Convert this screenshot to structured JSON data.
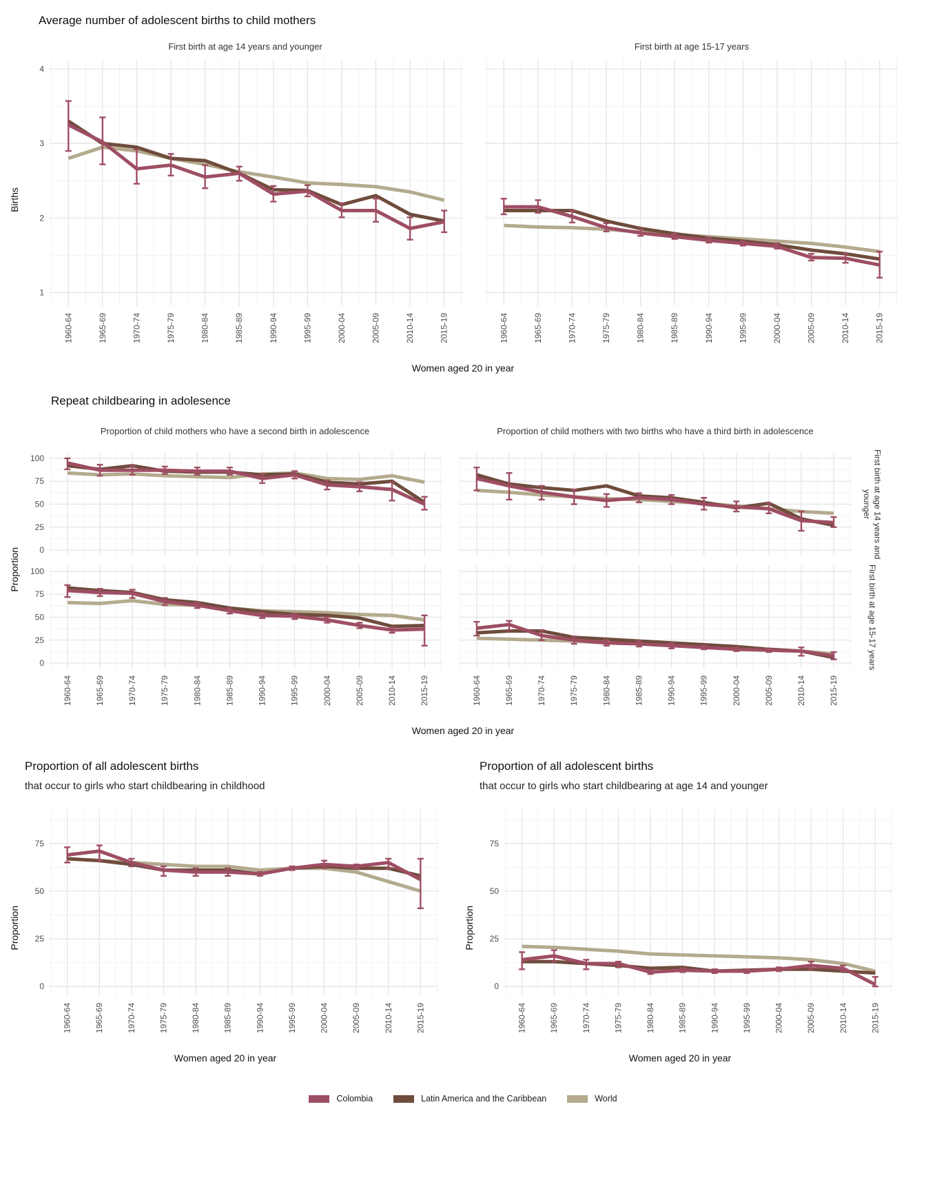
{
  "colors": {
    "colombia": "#9e4e63",
    "lac": "#6f4c3c",
    "world": "#b4aa8e",
    "grid_major": "#e5e5e5",
    "grid_minor": "#f2f2f2"
  },
  "x_categories": [
    "1960-64",
    "1965-69",
    "1970-74",
    "1975-79",
    "1980-84",
    "1985-89",
    "1990-94",
    "1995-99",
    "2000-04",
    "2005-09",
    "2010-14",
    "2015-19"
  ],
  "x_axis_title": "Women aged 20 in year",
  "legend": [
    {
      "label": "Colombia",
      "color": "#9e4e63"
    },
    {
      "label": "Latin America and the Caribbean",
      "color": "#6f4c3c"
    },
    {
      "label": "World",
      "color": "#b4aa8e"
    }
  ],
  "section_births": {
    "title": "Average number of adolescent births to child mothers",
    "y_label": "Births",
    "panel_titles": [
      "First birth at age 14 years and younger",
      "First birth at age 15-17 years"
    ]
  },
  "section_repeat": {
    "title": "Repeat childbearing in adolesence",
    "y_label": "Proportion",
    "col_titles": [
      "Proportion of child mothers who have a second birth in adolescence",
      "Proportion of child mothers with two births who have a third birth in adolescence"
    ],
    "row_strips": [
      "First birth at age 14 years and younger",
      "First birth at age 15-17 years"
    ]
  },
  "section_proportion": {
    "charts": [
      {
        "title": "Proportion of all adolescent births",
        "subtitle": "that occur to girls who start childbearing in childhood",
        "y_label": "Proportion"
      },
      {
        "title": "Proportion of all adolescent births",
        "subtitle": "that occur to girls who start childbearing at age 14 and younger",
        "y_label": "Proportion"
      }
    ]
  },
  "chart_data": [
    {
      "key": "births_first_birth_14_and_younger",
      "type": "line",
      "title": "First birth at age 14 years and younger",
      "ylabel": "Births",
      "ylim": [
        0.82,
        4.12
      ],
      "yticks_major": [
        1,
        2,
        3,
        4
      ],
      "yticks_minor": [
        1.5,
        2.5,
        3.5
      ],
      "series": [
        {
          "name": "World",
          "color": "#b4aa8e",
          "values": [
            2.8,
            2.95,
            2.9,
            2.8,
            2.72,
            2.62,
            2.55,
            2.47,
            2.45,
            2.42,
            2.35,
            2.24
          ]
        },
        {
          "name": "Latin America and the Caribbean",
          "color": "#6f4c3c",
          "values": [
            3.3,
            3.0,
            2.95,
            2.8,
            2.77,
            2.6,
            2.38,
            2.37,
            2.18,
            2.3,
            2.05,
            1.96
          ]
        },
        {
          "name": "Colombia",
          "color": "#9e4e63",
          "values": [
            3.25,
            3.02,
            2.66,
            2.71,
            2.55,
            2.6,
            2.32,
            2.36,
            2.1,
            2.1,
            1.86,
            1.95
          ],
          "error_low": [
            2.9,
            2.72,
            2.46,
            2.57,
            2.4,
            2.5,
            2.22,
            2.29,
            2.01,
            1.95,
            1.71,
            1.81
          ],
          "error_high": [
            3.57,
            3.35,
            2.92,
            2.86,
            2.71,
            2.69,
            2.43,
            2.44,
            2.2,
            2.26,
            2.01,
            2.1
          ]
        }
      ]
    },
    {
      "key": "births_first_birth_15_17",
      "type": "line",
      "title": "First birth at age 15-17 years",
      "ylabel": "Births",
      "ylim": [
        0.82,
        4.12
      ],
      "yticks_major": [
        1,
        2,
        3,
        4
      ],
      "yticks_minor": [
        1.5,
        2.5,
        3.5
      ],
      "series": [
        {
          "name": "World",
          "color": "#b4aa8e",
          "values": [
            1.9,
            1.88,
            1.87,
            1.85,
            1.81,
            1.78,
            1.75,
            1.72,
            1.69,
            1.66,
            1.61,
            1.55
          ]
        },
        {
          "name": "Latin America and the Caribbean",
          "color": "#6f4c3c",
          "values": [
            2.1,
            2.1,
            2.1,
            1.96,
            1.86,
            1.79,
            1.73,
            1.69,
            1.64,
            1.57,
            1.52,
            1.45
          ]
        },
        {
          "name": "Colombia",
          "color": "#9e4e63",
          "values": [
            2.15,
            2.15,
            2.02,
            1.87,
            1.8,
            1.75,
            1.7,
            1.66,
            1.62,
            1.47,
            1.46,
            1.37
          ],
          "error_low": [
            2.05,
            2.07,
            1.94,
            1.82,
            1.76,
            1.72,
            1.67,
            1.63,
            1.59,
            1.43,
            1.4,
            1.2
          ],
          "error_high": [
            2.26,
            2.24,
            2.1,
            1.93,
            1.85,
            1.79,
            1.74,
            1.69,
            1.66,
            1.52,
            1.52,
            1.55
          ]
        }
      ]
    },
    {
      "key": "second_birth_given_first_14_and_younger",
      "type": "line",
      "title": "Proportion of child mothers who have a second birth in adolescence | First birth at age 14 years and younger",
      "ylabel": "Proportion",
      "ylim": [
        -6,
        106
      ],
      "yticks_major": [
        0,
        25,
        50,
        75,
        100
      ],
      "yticks_minor": [
        12.5,
        37.5,
        62.5,
        87.5
      ],
      "series": [
        {
          "name": "World",
          "color": "#b4aa8e",
          "values": [
            84,
            82,
            83,
            81,
            80,
            79,
            83,
            84,
            78,
            77,
            81,
            74
          ]
        },
        {
          "name": "Latin America and the Caribbean",
          "color": "#6f4c3c",
          "values": [
            92,
            88,
            92,
            86,
            85,
            85,
            82,
            83,
            74,
            72,
            75,
            52
          ]
        },
        {
          "name": "Colombia",
          "color": "#9e4e63",
          "values": [
            95,
            87,
            87,
            87,
            86,
            86,
            78,
            82,
            71,
            69,
            66,
            50
          ],
          "error_low": [
            88,
            81,
            82,
            83,
            82,
            82,
            73,
            78,
            66,
            64,
            54,
            44
          ],
          "error_high": [
            100,
            93,
            92,
            91,
            90,
            90,
            83,
            86,
            76,
            74,
            74,
            58
          ]
        }
      ]
    },
    {
      "key": "third_birth_given_first_14_and_younger",
      "type": "line",
      "title": "Proportion of child mothers with two births who have a third birth in adolescence | First birth at age 14 years and younger",
      "ylabel": "Proportion",
      "ylim": [
        -6,
        106
      ],
      "yticks_major": [
        0,
        25,
        50,
        75,
        100
      ],
      "yticks_minor": [
        12.5,
        37.5,
        62.5,
        87.5
      ],
      "series": [
        {
          "name": "World",
          "color": "#b4aa8e",
          "values": [
            65,
            63,
            60,
            58,
            56,
            55,
            53,
            51,
            48,
            45,
            42,
            40
          ]
        },
        {
          "name": "Latin America and the Caribbean",
          "color": "#6f4c3c",
          "values": [
            82,
            72,
            68,
            65,
            70,
            59,
            57,
            52,
            46,
            51,
            34,
            27
          ]
        },
        {
          "name": "Colombia",
          "color": "#9e4e63",
          "values": [
            78,
            70,
            63,
            58,
            54,
            57,
            55,
            50,
            47,
            45,
            32,
            30
          ],
          "error_low": [
            65,
            55,
            55,
            50,
            47,
            52,
            50,
            44,
            42,
            40,
            21,
            25
          ],
          "error_high": [
            90,
            84,
            70,
            66,
            61,
            62,
            60,
            57,
            53,
            51,
            42,
            36
          ]
        }
      ]
    },
    {
      "key": "second_birth_given_first_15_17",
      "type": "line",
      "title": "Proportion of child mothers who have a second birth in adolescence | First birth at age 15-17 years",
      "ylabel": "Proportion",
      "ylim": [
        -6,
        106
      ],
      "yticks_major": [
        0,
        25,
        50,
        75,
        100
      ],
      "yticks_minor": [
        12.5,
        37.5,
        62.5,
        87.5
      ],
      "series": [
        {
          "name": "World",
          "color": "#b4aa8e",
          "values": [
            66,
            65,
            68,
            64,
            63,
            60,
            57,
            56,
            55,
            53,
            52,
            47
          ]
        },
        {
          "name": "Latin America and the Caribbean",
          "color": "#6f4c3c",
          "values": [
            82,
            79,
            77,
            69,
            66,
            60,
            56,
            53,
            52,
            49,
            40,
            41
          ]
        },
        {
          "name": "Colombia",
          "color": "#9e4e63",
          "values": [
            79,
            77,
            76,
            67,
            63,
            57,
            52,
            51,
            47,
            41,
            36,
            37
          ],
          "error_low": [
            72,
            73,
            71,
            63,
            60,
            54,
            49,
            48,
            44,
            38,
            33,
            19
          ],
          "error_high": [
            85,
            81,
            80,
            71,
            66,
            60,
            55,
            54,
            50,
            44,
            39,
            52
          ]
        }
      ]
    },
    {
      "key": "third_birth_given_first_15_17",
      "type": "line",
      "title": "Proportion of child mothers with two births who have a third birth in adolescence | First birth at age 15-17 years",
      "ylabel": "Proportion",
      "ylim": [
        -6,
        106
      ],
      "yticks_major": [
        0,
        25,
        50,
        75,
        100
      ],
      "yticks_minor": [
        12.5,
        37.5,
        62.5,
        87.5
      ],
      "series": [
        {
          "name": "World",
          "color": "#b4aa8e",
          "values": [
            27,
            26,
            25,
            24,
            22,
            21,
            19,
            18,
            16,
            15,
            13,
            10
          ]
        },
        {
          "name": "Latin America and the Caribbean",
          "color": "#6f4c3c",
          "values": [
            33,
            35,
            35,
            28,
            26,
            24,
            22,
            20,
            18,
            15,
            13,
            6
          ]
        },
        {
          "name": "Colombia",
          "color": "#9e4e63",
          "values": [
            38,
            42,
            30,
            25,
            22,
            21,
            19,
            17,
            15,
            14,
            13,
            8
          ],
          "error_low": [
            30,
            36,
            25,
            21,
            19,
            18,
            16,
            15,
            13,
            12,
            8,
            4
          ],
          "error_high": [
            45,
            46,
            36,
            29,
            25,
            24,
            22,
            19,
            17,
            16,
            17,
            12
          ]
        }
      ]
    },
    {
      "key": "share_births_childbearing_in_childhood",
      "type": "line",
      "title": "Proportion of all adolescent births that occur to girls who start childbearing in childhood",
      "ylabel": "Proportion",
      "ylim": [
        -5,
        93
      ],
      "yticks_major": [
        0,
        25,
        50,
        75
      ],
      "yticks_minor": [
        12.5,
        37.5,
        62.5,
        87.5
      ],
      "series": [
        {
          "name": "World",
          "color": "#b4aa8e",
          "values": [
            67,
            66,
            65,
            64,
            63,
            63,
            61,
            62,
            62,
            60,
            55,
            50
          ]
        },
        {
          "name": "Latin America and the Caribbean",
          "color": "#6f4c3c",
          "values": [
            67,
            66,
            64,
            61,
            61,
            61,
            59,
            62,
            63,
            62,
            62,
            58
          ]
        },
        {
          "name": "Colombia",
          "color": "#9e4e63",
          "values": [
            69,
            71,
            65,
            61,
            60,
            60,
            59,
            62,
            64,
            63,
            65,
            56
          ],
          "error_low": [
            65,
            66,
            63,
            58,
            58,
            58,
            58,
            61,
            62,
            62,
            62,
            41
          ],
          "error_high": [
            73,
            74,
            67,
            63,
            62,
            62,
            60,
            63,
            66,
            64,
            67,
            67
          ]
        }
      ]
    },
    {
      "key": "share_births_start_age_14_and_younger",
      "type": "line",
      "title": "Proportion of all adolescent births that occur to girls who start childbearing at age 14 and younger",
      "ylabel": "Proportion",
      "ylim": [
        -5,
        93
      ],
      "yticks_major": [
        0,
        25,
        50,
        75
      ],
      "yticks_minor": [
        12.5,
        37.5,
        62.5,
        87.5
      ],
      "series": [
        {
          "name": "World",
          "color": "#b4aa8e",
          "values": [
            21,
            20.5,
            19.5,
            18.5,
            17,
            16.5,
            16,
            15.5,
            15,
            14,
            12,
            8
          ]
        },
        {
          "name": "Latin America and the Caribbean",
          "color": "#6f4c3c",
          "values": [
            13,
            13,
            12,
            11,
            9.5,
            10,
            8,
            8.5,
            9,
            9,
            8,
            7
          ]
        },
        {
          "name": "Colombia",
          "color": "#9e4e63",
          "values": [
            14,
            16,
            12,
            12,
            7.5,
            8.5,
            8,
            8,
            9,
            11,
            9.5,
            1
          ],
          "error_low": [
            9,
            13,
            9,
            10,
            6.5,
            7.5,
            7,
            7,
            8,
            9,
            8,
            0
          ],
          "error_high": [
            18,
            19,
            14,
            13,
            8.5,
            9.5,
            9,
            9,
            10,
            13,
            11,
            5
          ]
        }
      ]
    }
  ]
}
